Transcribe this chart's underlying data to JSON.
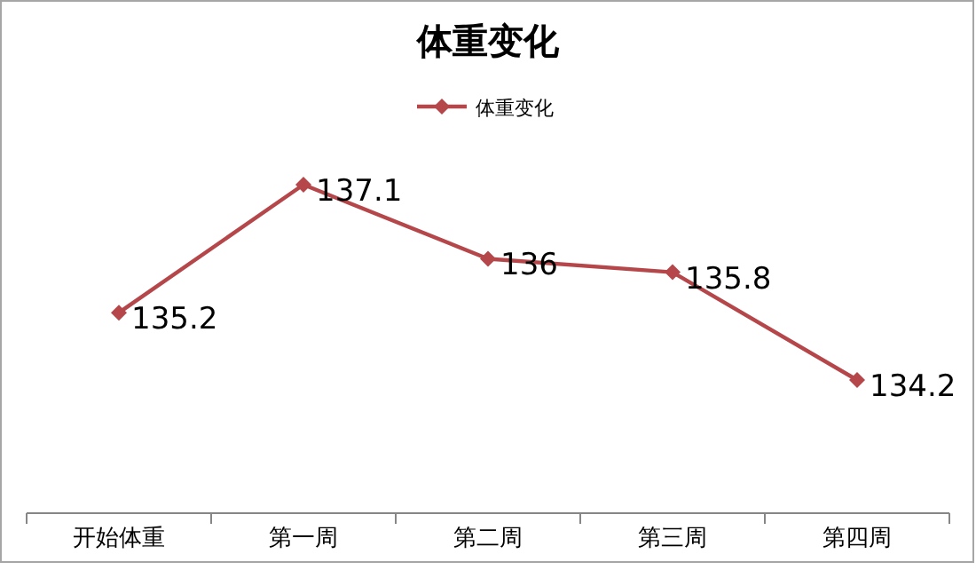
{
  "chart_data": {
    "type": "line",
    "title": "体重变化",
    "categories": [
      "开始体重",
      "第一周",
      "第二周",
      "第三周",
      "第四周"
    ],
    "series": [
      {
        "name": "体重变化",
        "color": "#b5474a",
        "values": [
          135.2,
          137.1,
          136,
          135.8,
          134.2
        ]
      }
    ],
    "data_labels": true,
    "legend": "top",
    "marker": "diamond"
  }
}
